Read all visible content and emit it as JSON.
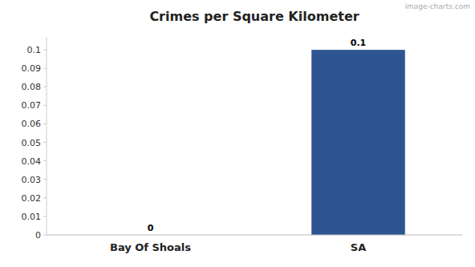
{
  "chart_data": {
    "type": "bar",
    "title": "Crimes per Square Kilometer",
    "categories": [
      "Bay Of Shoals",
      "SA"
    ],
    "values": [
      0,
      0.1
    ],
    "color": "#2e5592",
    "ylim": [
      0,
      0.107
    ],
    "yticks": [
      0,
      0.01,
      0.02,
      0.03,
      0.04,
      0.05,
      0.06,
      0.07,
      0.08,
      0.09,
      0.1
    ],
    "grid": false,
    "data_labels": true,
    "annotations": [
      "image-charts.com"
    ]
  }
}
